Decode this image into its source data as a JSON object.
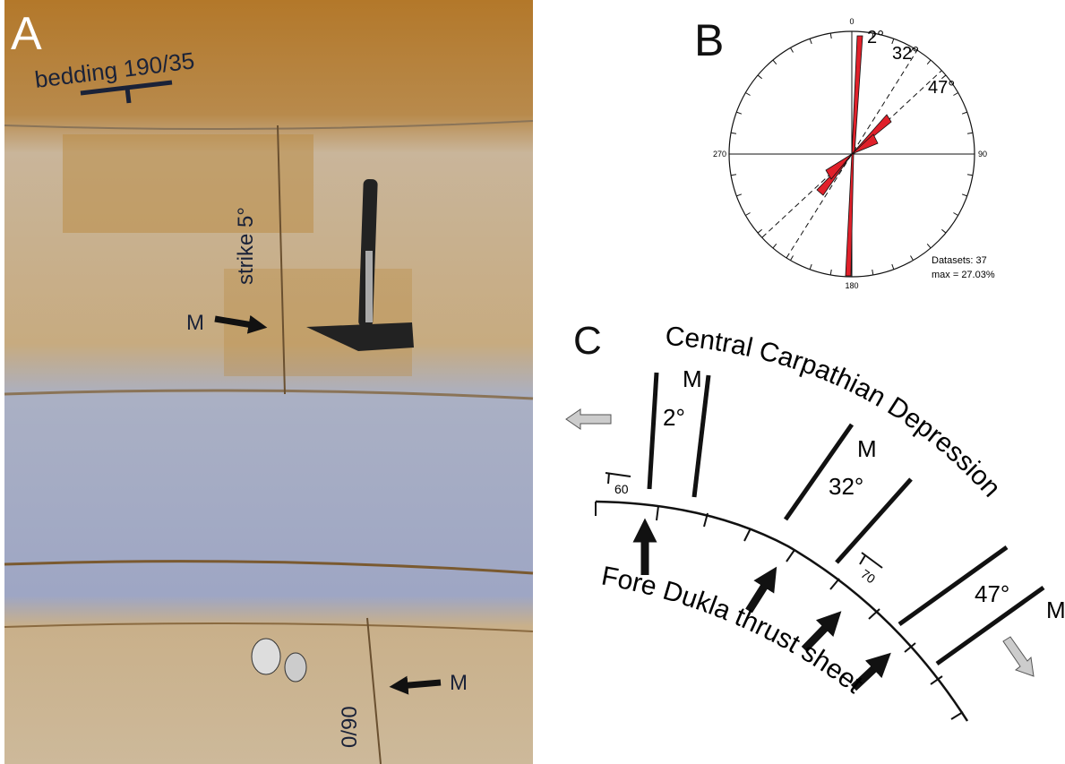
{
  "panel_a": {
    "label": "A",
    "bedding": "bedding 190/35",
    "strike": "strike 5°",
    "marker_upper": "M",
    "marker_lower": "M",
    "measurement": "0/90"
  },
  "panel_b": {
    "label": "B",
    "axis_labels": [
      "0",
      "90",
      "180",
      "270"
    ],
    "directions": [
      "2°",
      "32°",
      "47°"
    ],
    "datasets": "Datasets: 37",
    "max": "max = 27.03%"
  },
  "panel_c": {
    "label": "C",
    "upper_region": "Central Carpathian Depression",
    "lower_region": "Fore Dukla thrust sheet",
    "groups": [
      {
        "marker": "M",
        "angle": "2°",
        "dip": "60"
      },
      {
        "marker": "M",
        "angle": "32°",
        "dip": "70"
      },
      {
        "marker": "M",
        "angle": "47°"
      }
    ]
  }
}
